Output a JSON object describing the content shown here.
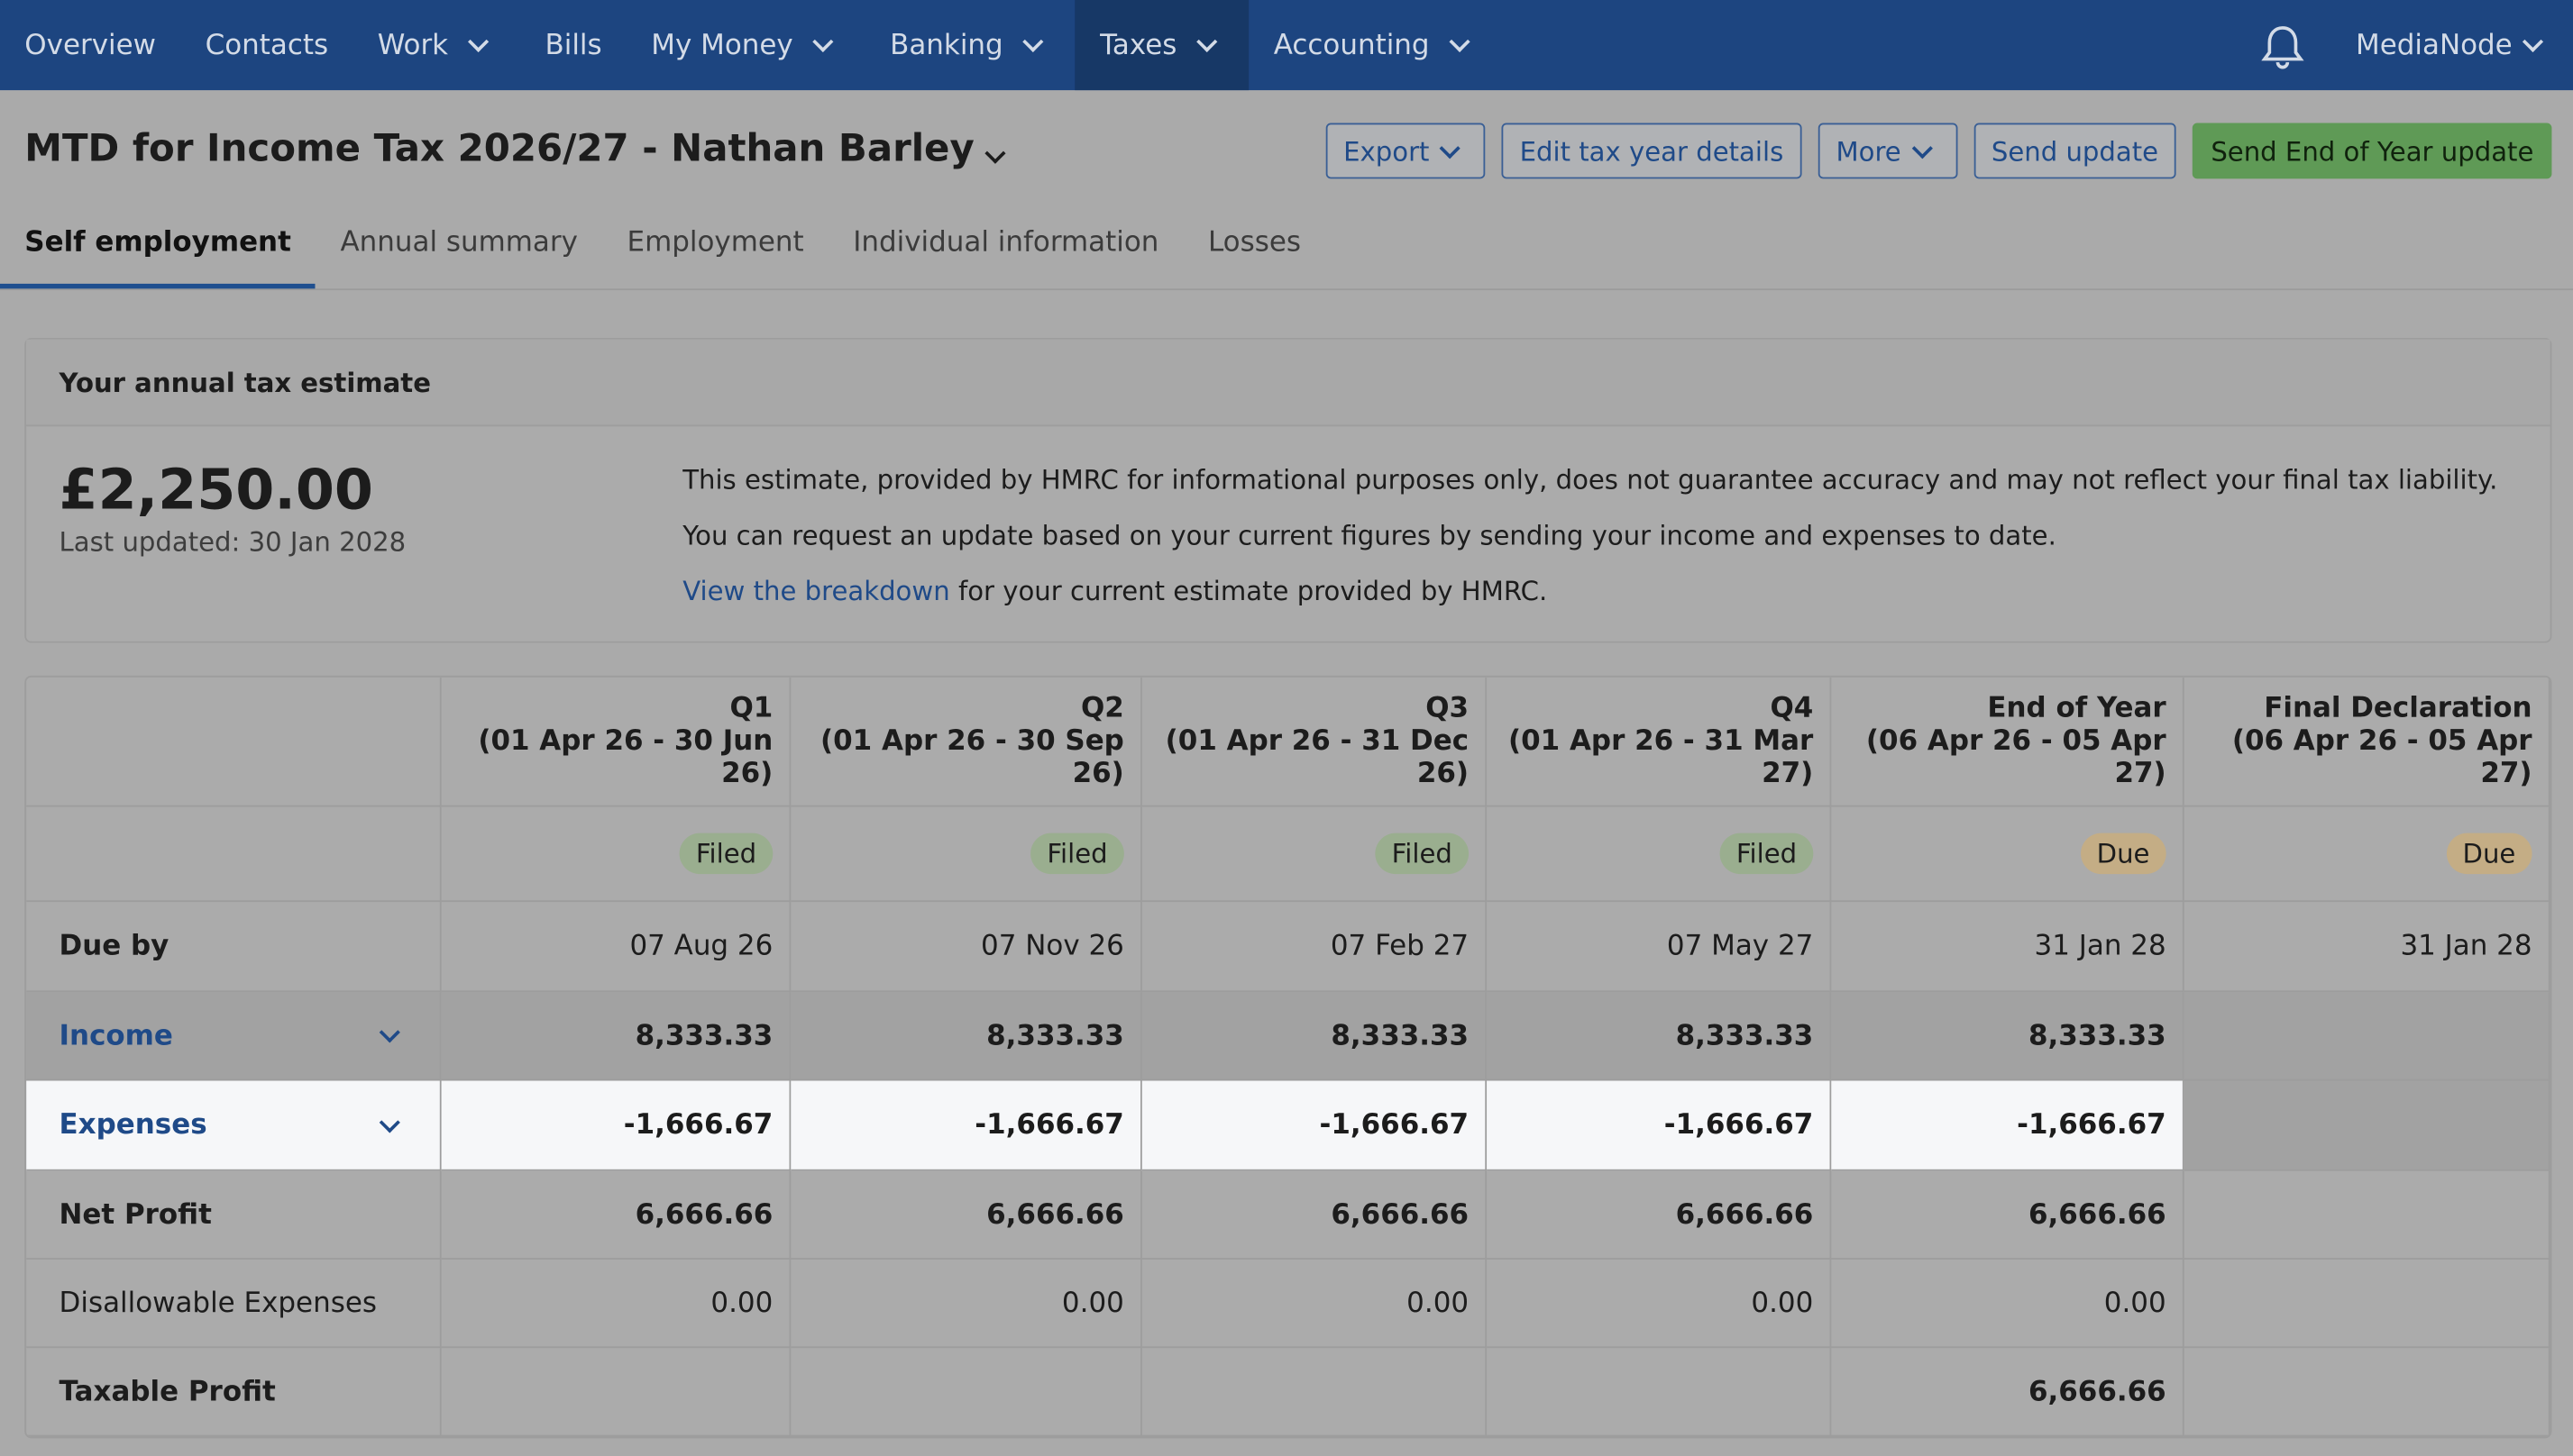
{
  "nav": {
    "items": [
      {
        "label": "Overview",
        "dropdown": false
      },
      {
        "label": "Contacts",
        "dropdown": false
      },
      {
        "label": "Work",
        "dropdown": true
      },
      {
        "label": "Bills",
        "dropdown": false
      },
      {
        "label": "My Money",
        "dropdown": true
      },
      {
        "label": "Banking",
        "dropdown": true
      },
      {
        "label": "Taxes",
        "dropdown": true,
        "active": true
      },
      {
        "label": "Accounting",
        "dropdown": true
      }
    ],
    "user": "MediaNode"
  },
  "header": {
    "title": "MTD for Income Tax 2026/27 - Nathan Barley",
    "buttons": [
      {
        "label": "Export",
        "dropdown": true
      },
      {
        "label": "Edit tax year details",
        "dropdown": false
      },
      {
        "label": "More",
        "dropdown": true
      },
      {
        "label": "Send update",
        "dropdown": false
      },
      {
        "label": "Send End of Year update",
        "dropdown": false,
        "primary": true
      }
    ]
  },
  "tabs": [
    "Self employment",
    "Annual summary",
    "Employment",
    "Individual information",
    "Losses"
  ],
  "estimate": {
    "heading": "Your annual tax estimate",
    "amount": "£2,250.00",
    "updated": "Last updated: 30 Jan 2028",
    "line1": "This estimate, provided by HMRC for informational purposes only, does not guarantee accuracy and may not reflect your final tax liability.",
    "line2": "You can request an update based on your current figures by sending your income and expenses to date.",
    "link": "View the breakdown",
    "line3": "for your current estimate provided by HMRC."
  },
  "table": {
    "columns": [
      {
        "name": "Q1",
        "period": "(01 Apr 26 - 30 Jun 26)",
        "status": "Filed"
      },
      {
        "name": "Q2",
        "period": "(01 Apr 26 - 30 Sep 26)",
        "status": "Filed"
      },
      {
        "name": "Q3",
        "period": "(01 Apr 26 - 31 Dec 26)",
        "status": "Filed"
      },
      {
        "name": "Q4",
        "period": "(01 Apr 26 - 31 Mar 27)",
        "status": "Filed"
      },
      {
        "name": "End of Year",
        "period": "(06 Apr 26 - 05 Apr 27)",
        "status": "Due"
      },
      {
        "name": "Final Declaration",
        "period": "(06 Apr 26 - 05 Apr 27)",
        "status": "Due"
      }
    ],
    "rows": [
      {
        "label": "Due by",
        "values": [
          "07 Aug 26",
          "07 Nov 26",
          "07 Feb 27",
          "07 May 27",
          "31 Jan 28",
          "31 Jan 28"
        ]
      },
      {
        "label": "Income",
        "link": true,
        "values": [
          "8,333.33",
          "8,333.33",
          "8,333.33",
          "8,333.33",
          "8,333.33",
          null
        ]
      },
      {
        "label": "Expenses",
        "link": true,
        "highlight": true,
        "values": [
          "-1,666.67",
          "-1,666.67",
          "-1,666.67",
          "-1,666.67",
          "-1,666.67",
          null
        ]
      },
      {
        "label": "Net Profit",
        "bold": true,
        "values": [
          "6,666.66",
          "6,666.66",
          "6,666.66",
          "6,666.66",
          "6,666.66",
          null
        ]
      },
      {
        "label": "Disallowable Expenses",
        "values": [
          "0.00",
          "0.00",
          "0.00",
          "0.00",
          "0.00",
          null
        ]
      },
      {
        "label": "Taxable Profit",
        "bold": true,
        "values": [
          null,
          null,
          null,
          null,
          "6,666.66",
          null
        ]
      }
    ]
  }
}
